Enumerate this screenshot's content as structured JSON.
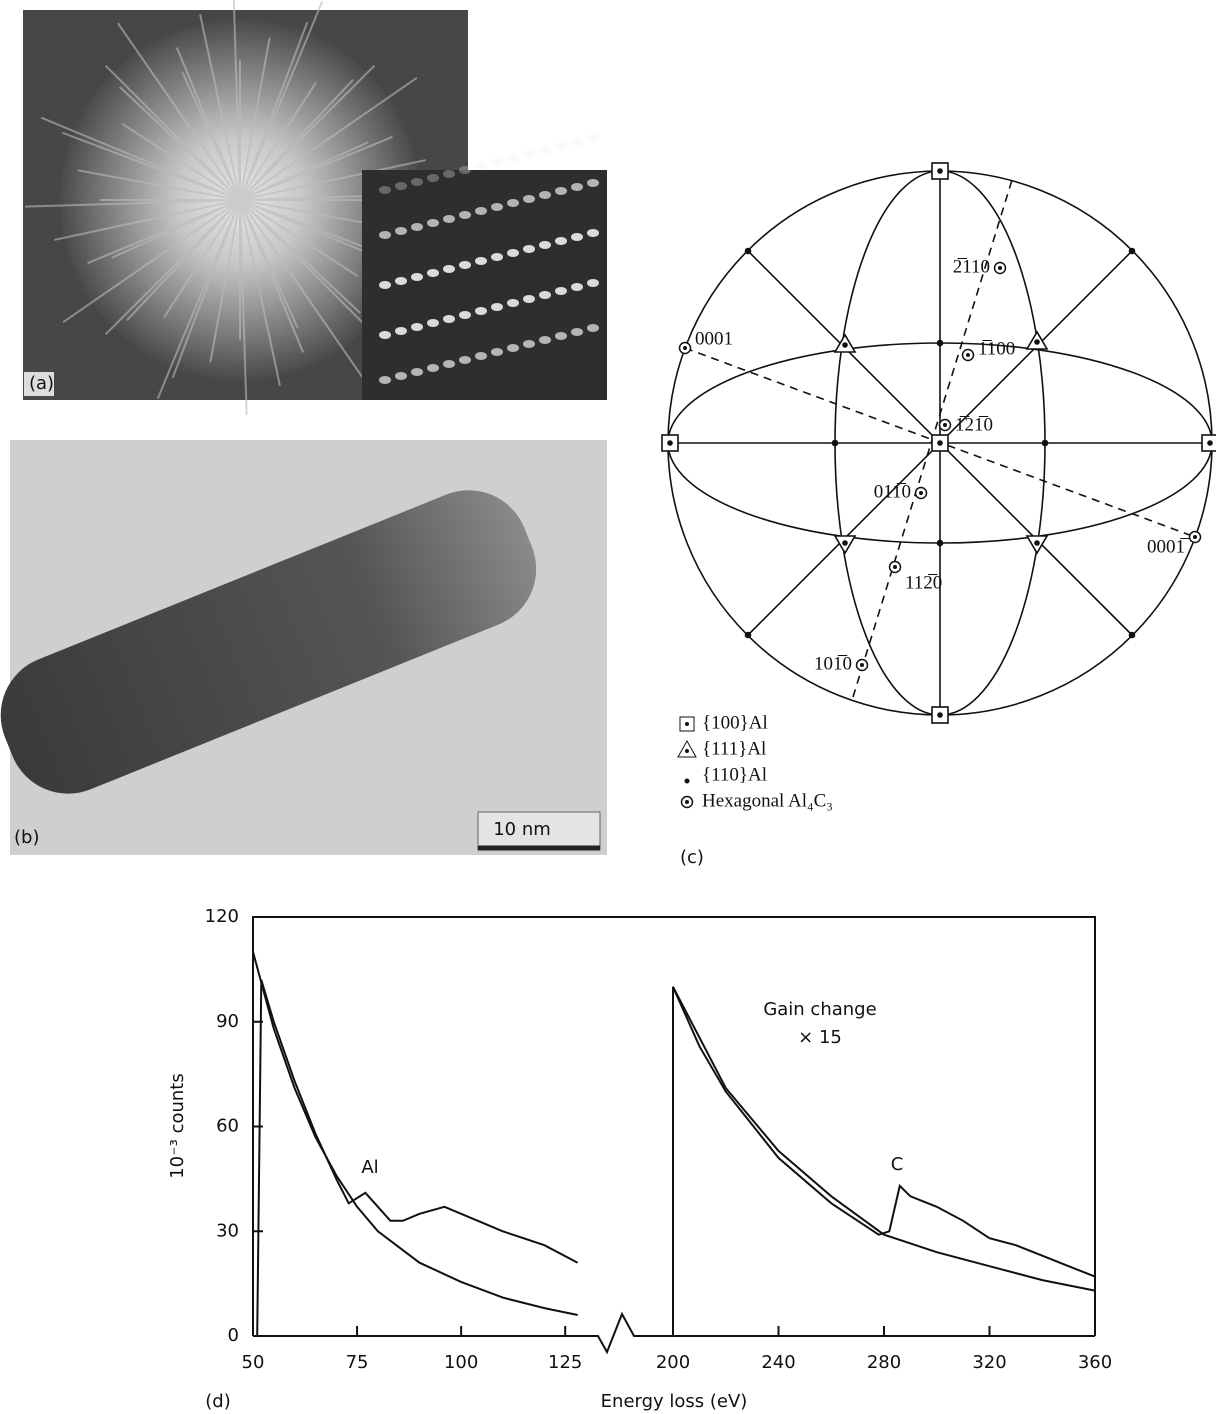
{
  "panel_a": {
    "label": "(a)"
  },
  "panel_b": {
    "label": "(b)",
    "scale_bar": "10 nm"
  },
  "panel_c": {
    "label": "(c)",
    "poles": [
      "0001",
      "2̅110",
      "1̅100",
      "1̅21̅0",
      "011̅0",
      "112̅0",
      "101̅0",
      "0001̅"
    ],
    "legend": [
      "{100}Al",
      "{111}Al",
      "{110}Al",
      "Hexagonal Al₄C₃"
    ]
  },
  "chart_data": {
    "type": "line",
    "panel_label": "(d)",
    "xlabel": "Energy loss (eV)",
    "ylabel": "10⁻³ counts",
    "color": "#111111",
    "ylim": [
      0,
      120
    ],
    "yticks": [
      0,
      30,
      60,
      90,
      120
    ],
    "x_segments": [
      {
        "xlim": [
          50,
          130
        ],
        "xticks": [
          50,
          75,
          100,
          125
        ]
      },
      {
        "xlim": [
          200,
          360
        ],
        "xticks": [
          200,
          240,
          280,
          320,
          360
        ]
      }
    ],
    "annotations": [
      "Al",
      "C",
      "Gain change",
      "× 15"
    ],
    "series": [
      {
        "x": [
          50,
          55,
          60,
          65,
          70,
          75,
          80,
          90,
          100,
          110,
          120,
          128
        ],
        "values": [
          110,
          88,
          71,
          57,
          46,
          37,
          30,
          21,
          15.5,
          11,
          8,
          6
        ]
      },
      {
        "x": [
          51,
          52,
          55,
          60,
          65,
          70,
          73,
          77,
          80,
          83,
          86,
          90,
          96,
          100,
          110,
          120,
          128
        ],
        "values": [
          0,
          102,
          90,
          73,
          58,
          45,
          38,
          41,
          37,
          33,
          33,
          35,
          37,
          35,
          30,
          26,
          21
        ]
      },
      {
        "x": [
          200,
          220,
          240,
          260,
          280,
          300,
          320,
          340,
          360
        ],
        "values": [
          100,
          71,
          53,
          40,
          29,
          24,
          20,
          16,
          13
        ]
      },
      {
        "x": [
          200,
          200,
          210,
          220,
          240,
          260,
          278,
          282,
          286,
          290,
          300,
          310,
          320,
          330,
          340,
          350,
          360
        ],
        "values": [
          0,
          100,
          83,
          70,
          51,
          38,
          29,
          30,
          43,
          40,
          37,
          33,
          28,
          26,
          23,
          20,
          17
        ]
      }
    ]
  }
}
